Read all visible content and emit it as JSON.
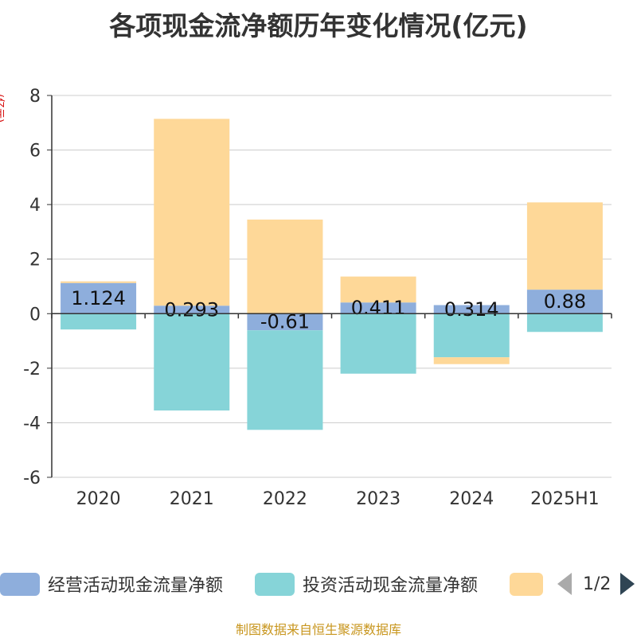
{
  "title": "各项现金流净额历年变化情况(亿元)",
  "unit_label": "(亿元)",
  "source": "制图数据来自恒生聚源数据库",
  "legend_page": "1/2",
  "colors": {
    "operating": "#8eaedc",
    "investing": "#86d4d8",
    "financing": "#fed898",
    "axis": "#333333",
    "grid": "#cccccc"
  },
  "chart_data": {
    "type": "bar",
    "stacked": true,
    "categories": [
      "2020",
      "2021",
      "2022",
      "2023",
      "2024",
      "2025H1"
    ],
    "ylim": [
      -6,
      8
    ],
    "yticks": [
      -6,
      -4,
      -2,
      0,
      2,
      4,
      6,
      8
    ],
    "grid": true,
    "legend_position": "bottom",
    "series": [
      {
        "name": "经营活动现金流量净额",
        "color_key": "operating",
        "values": [
          1.124,
          0.293,
          -0.61,
          0.411,
          0.314,
          0.88
        ],
        "show_labels": true
      },
      {
        "name": "投资活动现金流量净额",
        "color_key": "investing",
        "values": [
          -0.58,
          -3.55,
          -3.65,
          -2.2,
          -1.6,
          -0.67
        ],
        "show_labels": false
      },
      {
        "name": "",
        "color_key": "financing",
        "values": [
          0.06,
          6.85,
          3.45,
          0.95,
          -0.25,
          3.2
        ],
        "show_labels": false
      }
    ]
  }
}
